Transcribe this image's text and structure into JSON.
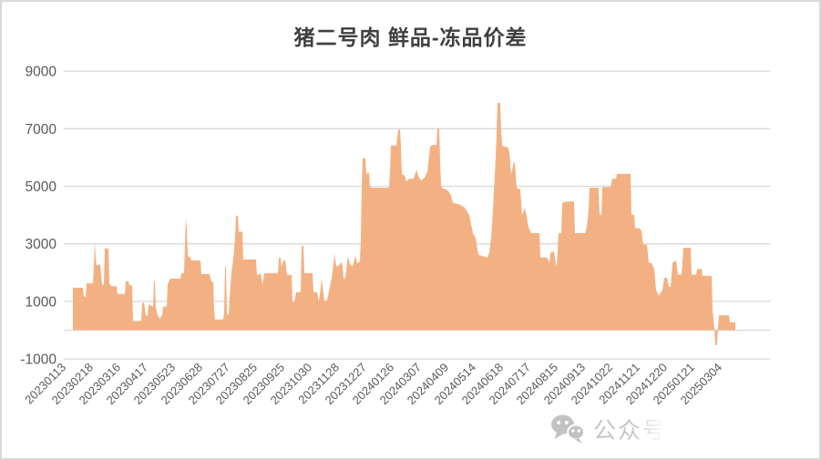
{
  "watermark": {
    "label": "公众号"
  },
  "colors": {
    "background": "#FFFFFF",
    "border": "#D8D8D8",
    "area_fill": "#F3B183",
    "gridline": "#D9D9D9",
    "axis_text": "#595959",
    "title_text": "#3F3F3F",
    "watermark_text": "#C5C5C5"
  },
  "chart_data": {
    "type": "area",
    "title": "猪二号肉 鲜品-冻品价差",
    "legend": "none",
    "grid": "horizontal",
    "ylim": [
      -1000,
      9000
    ],
    "y_ticks": [
      9000,
      7000,
      5000,
      3000,
      1000,
      -1000
    ],
    "x_axis_type": "daily date categories",
    "x_tick_labels": [
      "20230113",
      "20230218",
      "20230316",
      "20230417",
      "20230523",
      "20230628",
      "20230727",
      "20230825",
      "20230925",
      "20231030",
      "20231128",
      "20231227",
      "20240126",
      "20240307",
      "20240409",
      "20240514",
      "20240618",
      "20240717",
      "20240815",
      "20240913",
      "20241022",
      "20241121",
      "20241220",
      "20250121",
      "20250304"
    ],
    "points_note": "sampled [canvas_x_px, value] control points tracing the daily series",
    "points": [
      [
        78,
        1475
      ],
      [
        89,
        1475
      ],
      [
        90,
        1160
      ],
      [
        92,
        1160
      ],
      [
        93,
        1630
      ],
      [
        100,
        1630
      ],
      [
        101,
        2200
      ],
      [
        102,
        3100
      ],
      [
        103,
        2500
      ],
      [
        104,
        2250
      ],
      [
        108,
        2290
      ],
      [
        110,
        1580
      ],
      [
        112,
        1580
      ],
      [
        113,
        2840
      ],
      [
        117,
        2840
      ],
      [
        118,
        1630
      ],
      [
        120,
        1530
      ],
      [
        126,
        1530
      ],
      [
        127,
        1260
      ],
      [
        135,
        1260
      ],
      [
        136,
        1700
      ],
      [
        139,
        1700
      ],
      [
        140,
        1560
      ],
      [
        143,
        1560
      ],
      [
        144,
        320
      ],
      [
        153,
        320
      ],
      [
        154,
        930
      ],
      [
        156,
        970
      ],
      [
        158,
        505
      ],
      [
        160,
        505
      ],
      [
        161,
        900
      ],
      [
        166,
        820
      ],
      [
        167,
        1700
      ],
      [
        168,
        1700
      ],
      [
        169,
        800
      ],
      [
        171,
        520
      ],
      [
        173,
        400
      ],
      [
        176,
        520
      ],
      [
        177,
        820
      ],
      [
        181,
        820
      ],
      [
        182,
        1600
      ],
      [
        185,
        1790
      ],
      [
        196,
        1790
      ],
      [
        197,
        1980
      ],
      [
        200,
        1980
      ],
      [
        201,
        3000
      ],
      [
        202,
        3915
      ],
      [
        203,
        3500
      ],
      [
        204,
        2580
      ],
      [
        207,
        2530
      ],
      [
        208,
        2420
      ],
      [
        218,
        2420
      ],
      [
        219,
        1950
      ],
      [
        228,
        1950
      ],
      [
        230,
        1680
      ],
      [
        232,
        1680
      ],
      [
        233,
        700
      ],
      [
        234,
        370
      ],
      [
        243,
        370
      ],
      [
        244,
        630
      ],
      [
        245,
        2210
      ],
      [
        246,
        2210
      ],
      [
        247,
        630
      ],
      [
        248,
        530
      ],
      [
        249,
        530
      ],
      [
        250,
        1160
      ],
      [
        252,
        2000
      ],
      [
        254,
        2470
      ],
      [
        256,
        3200
      ],
      [
        257,
        3980
      ],
      [
        259,
        3980
      ],
      [
        260,
        3420
      ],
      [
        264,
        3420
      ],
      [
        265,
        2460
      ],
      [
        279,
        2460
      ],
      [
        280,
        1900
      ],
      [
        284,
        1980
      ],
      [
        286,
        1580
      ],
      [
        288,
        1980
      ],
      [
        303,
        1980
      ],
      [
        304,
        2510
      ],
      [
        306,
        2510
      ],
      [
        307,
        2215
      ],
      [
        309,
        2425
      ],
      [
        311,
        2425
      ],
      [
        313,
        1920
      ],
      [
        318,
        1920
      ],
      [
        319,
        970
      ],
      [
        321,
        970
      ],
      [
        323,
        1320
      ],
      [
        328,
        1320
      ],
      [
        329,
        2930
      ],
      [
        331,
        2930
      ],
      [
        332,
        2000
      ],
      [
        333,
        1980
      ],
      [
        341,
        1980
      ],
      [
        342,
        1320
      ],
      [
        346,
        1320
      ],
      [
        348,
        1000
      ],
      [
        350,
        1500
      ],
      [
        351,
        1790
      ],
      [
        353,
        1300
      ],
      [
        354,
        1000
      ],
      [
        357,
        1050
      ],
      [
        362,
        1800
      ],
      [
        364,
        2300
      ],
      [
        365,
        2660
      ],
      [
        367,
        2220
      ],
      [
        370,
        2240
      ],
      [
        372,
        2370
      ],
      [
        374,
        2240
      ],
      [
        375,
        1800
      ],
      [
        377,
        1800
      ],
      [
        379,
        2400
      ],
      [
        380,
        2560
      ],
      [
        382,
        2300
      ],
      [
        385,
        2210
      ],
      [
        388,
        2580
      ],
      [
        390,
        2315
      ],
      [
        393,
        2400
      ],
      [
        394,
        3200
      ],
      [
        395,
        5000
      ],
      [
        396,
        5950
      ],
      [
        398,
        6000
      ],
      [
        399,
        5950
      ],
      [
        400,
        5390
      ],
      [
        401,
        5470
      ],
      [
        403,
        5470
      ],
      [
        404,
        4970
      ],
      [
        406,
        4950
      ],
      [
        425,
        4950
      ],
      [
        426,
        5500
      ],
      [
        427,
        6420
      ],
      [
        433,
        6420
      ],
      [
        435,
        6970
      ],
      [
        437,
        6970
      ],
      [
        438,
        6400
      ],
      [
        439,
        5420
      ],
      [
        442,
        5370
      ],
      [
        444,
        5160
      ],
      [
        447,
        5260
      ],
      [
        452,
        5260
      ],
      [
        455,
        5580
      ],
      [
        457,
        5370
      ],
      [
        460,
        5200
      ],
      [
        464,
        5300
      ],
      [
        467,
        5500
      ],
      [
        470,
        6370
      ],
      [
        473,
        6440
      ],
      [
        477,
        6440
      ],
      [
        478,
        7000
      ],
      [
        480,
        7000
      ],
      [
        481,
        5900
      ],
      [
        482,
        5050
      ],
      [
        483,
        4950
      ],
      [
        488,
        4880
      ],
      [
        490,
        4840
      ],
      [
        493,
        4680
      ],
      [
        495,
        4420
      ],
      [
        502,
        4370
      ],
      [
        508,
        4260
      ],
      [
        511,
        4100
      ],
      [
        513,
        4000
      ],
      [
        517,
        3370
      ],
      [
        520,
        3210
      ],
      [
        523,
        2630
      ],
      [
        527,
        2580
      ],
      [
        533,
        2525
      ],
      [
        535,
        2700
      ],
      [
        537,
        3210
      ],
      [
        539,
        4200
      ],
      [
        541,
        5370
      ],
      [
        543,
        6800
      ],
      [
        544,
        7900
      ],
      [
        547,
        7890
      ],
      [
        548,
        7000
      ],
      [
        549,
        6420
      ],
      [
        552,
        6370
      ],
      [
        555,
        6370
      ],
      [
        557,
        6200
      ],
      [
        559,
        5420
      ],
      [
        562,
        5840
      ],
      [
        563,
        5840
      ],
      [
        565,
        4950
      ],
      [
        569,
        4890
      ],
      [
        571,
        4000
      ],
      [
        574,
        4260
      ],
      [
        576,
        3950
      ],
      [
        578,
        3580
      ],
      [
        581,
        3370
      ],
      [
        590,
        3370
      ],
      [
        591,
        2530
      ],
      [
        598,
        2530
      ],
      [
        600,
        2420
      ],
      [
        601,
        2315
      ],
      [
        602,
        2680
      ],
      [
        606,
        2740
      ],
      [
        608,
        2315
      ],
      [
        609,
        2210
      ],
      [
        611,
        3370
      ],
      [
        614,
        3370
      ],
      [
        615,
        4420
      ],
      [
        620,
        4470
      ],
      [
        628,
        4470
      ],
      [
        629,
        3370
      ],
      [
        640,
        3370
      ],
      [
        642,
        3600
      ],
      [
        644,
        4200
      ],
      [
        645,
        4950
      ],
      [
        655,
        4950
      ],
      [
        656,
        4010
      ],
      [
        658,
        4010
      ],
      [
        659,
        4970
      ],
      [
        668,
        4970
      ],
      [
        670,
        5260
      ],
      [
        674,
        5260
      ],
      [
        675,
        5430
      ],
      [
        690,
        5430
      ],
      [
        691,
        4010
      ],
      [
        694,
        4010
      ],
      [
        695,
        3540
      ],
      [
        700,
        3540
      ],
      [
        702,
        3440
      ],
      [
        704,
        2970
      ],
      [
        708,
        2970
      ],
      [
        710,
        2340
      ],
      [
        713,
        2340
      ],
      [
        716,
        2130
      ],
      [
        718,
        1400
      ],
      [
        721,
        1200
      ],
      [
        725,
        1400
      ],
      [
        727,
        1820
      ],
      [
        730,
        1820
      ],
      [
        732,
        1510
      ],
      [
        734,
        1510
      ],
      [
        736,
        2340
      ],
      [
        740,
        2430
      ],
      [
        742,
        1930
      ],
      [
        746,
        1930
      ],
      [
        748,
        2860
      ],
      [
        756,
        2860
      ],
      [
        757,
        1930
      ],
      [
        762,
        1930
      ],
      [
        763,
        2130
      ],
      [
        768,
        2130
      ],
      [
        769,
        1900
      ],
      [
        779,
        1880
      ],
      [
        780,
        700
      ],
      [
        782,
        100
      ],
      [
        783,
        -520
      ],
      [
        785,
        -520
      ],
      [
        786,
        100
      ],
      [
        787,
        520
      ],
      [
        798,
        520
      ],
      [
        799,
        280
      ],
      [
        805,
        280
      ]
    ]
  }
}
